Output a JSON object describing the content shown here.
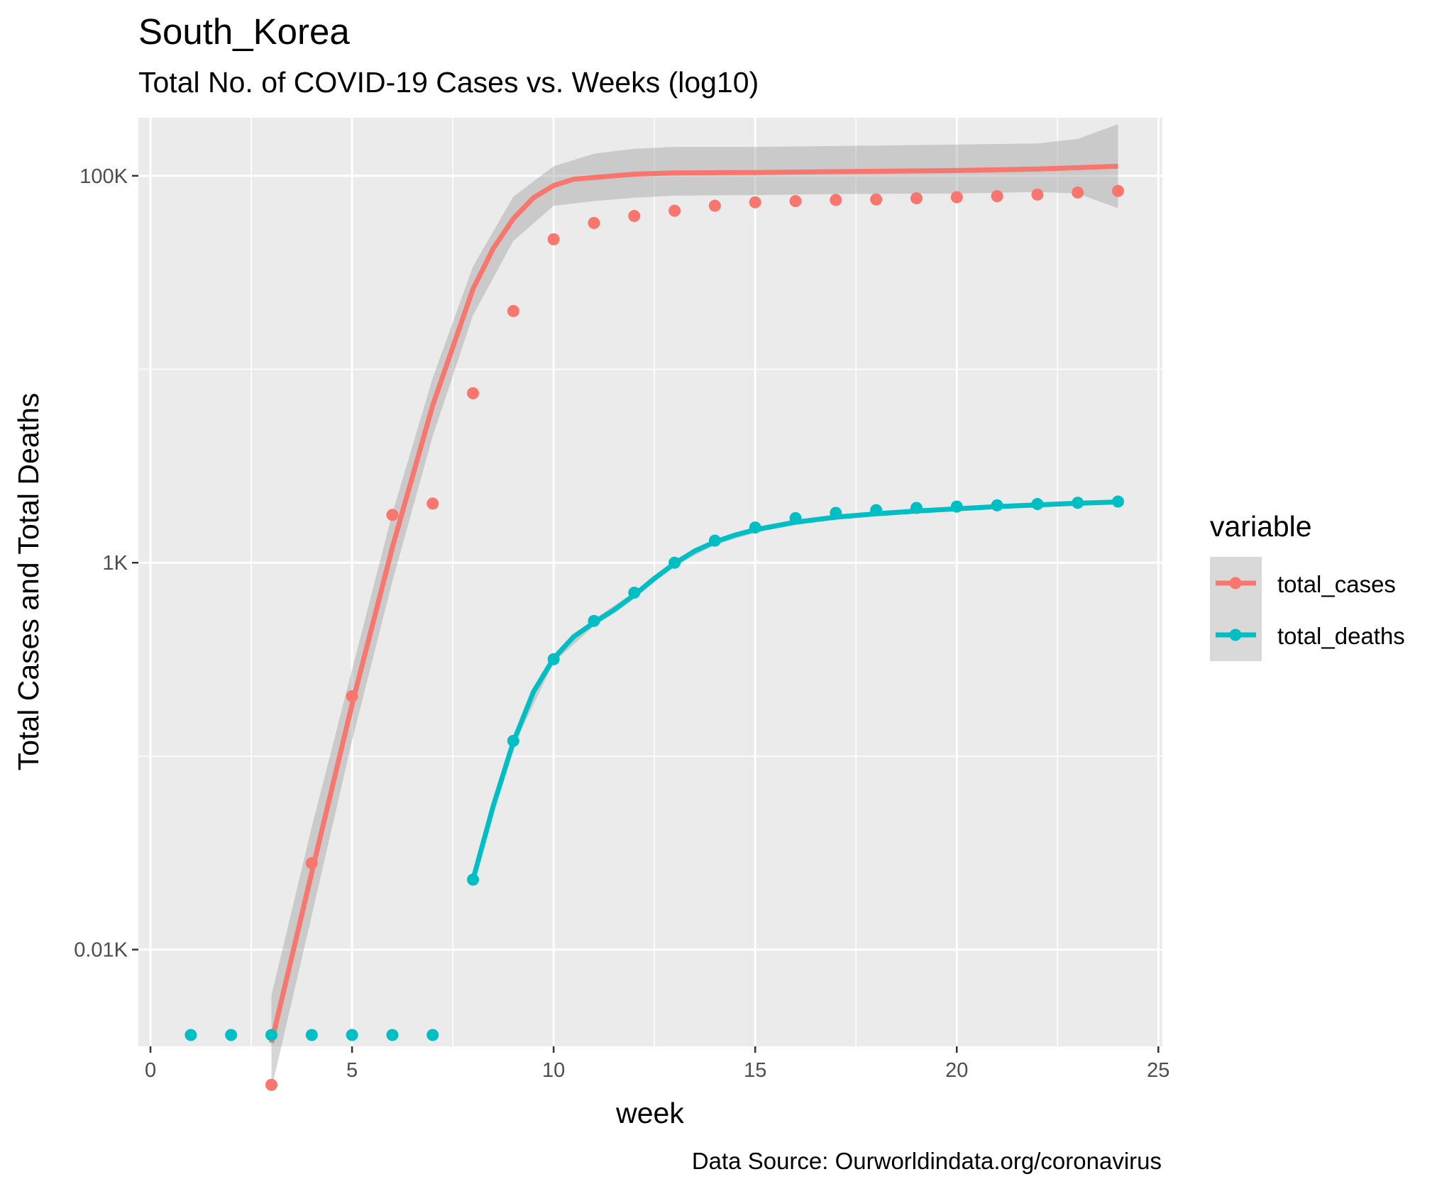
{
  "chart_data": {
    "type": "scatter",
    "title": "South_Korea",
    "subtitle": "Total No. of COVID-19 Cases vs. Weeks (log10)",
    "xlabel": "week",
    "ylabel": "Total Cases and Total Deaths",
    "caption": "Data Source: Ourworldindata.org/coronavirus",
    "x_scale": "linear",
    "y_scale": "log10",
    "xlim": [
      -0.3,
      25.1
    ],
    "ylim_log10": [
      0.5,
      5.3
    ],
    "x_ticks": [
      0,
      5,
      10,
      15,
      20,
      25
    ],
    "y_ticks": [
      {
        "value": 10,
        "label": "0.01K"
      },
      {
        "value": 1000,
        "label": "1K"
      },
      {
        "value": 100000,
        "label": "100K"
      }
    ],
    "grid": true,
    "smoothing": "loess with confidence band",
    "legend": {
      "title": "variable",
      "position": "right"
    },
    "series": [
      {
        "name": "total_cases",
        "color": "#F8766D",
        "points": [
          [
            3,
            2
          ],
          [
            4,
            28
          ],
          [
            5,
            204
          ],
          [
            6,
            1766
          ],
          [
            7,
            2022
          ],
          [
            8,
            7513
          ],
          [
            9,
            20000
          ],
          [
            10,
            47000
          ],
          [
            11,
            57000
          ],
          [
            12,
            62000
          ],
          [
            13,
            66000
          ],
          [
            14,
            70000
          ],
          [
            15,
            73000
          ],
          [
            16,
            74000
          ],
          [
            17,
            75000
          ],
          [
            18,
            75500
          ],
          [
            19,
            76500
          ],
          [
            20,
            77500
          ],
          [
            21,
            78500
          ],
          [
            22,
            80000
          ],
          [
            23,
            82000
          ],
          [
            24,
            83500
          ]
        ],
        "zero_points": [],
        "smooth": [
          [
            3,
            3.3
          ],
          [
            4,
            25
          ],
          [
            5,
            185
          ],
          [
            6,
            1200
          ],
          [
            7,
            6500
          ],
          [
            8,
            26000
          ],
          [
            8.5,
            42000
          ],
          [
            9,
            60000
          ],
          [
            9.5,
            77000
          ],
          [
            10,
            89000
          ],
          [
            10.5,
            96000
          ],
          [
            11,
            98000
          ],
          [
            12,
            102000
          ],
          [
            13,
            103500
          ],
          [
            15,
            104000
          ],
          [
            17,
            105000
          ],
          [
            20,
            106500
          ],
          [
            22,
            108500
          ],
          [
            24,
            112000
          ]
        ],
        "band": [
          [
            3,
            1.9,
            5.8
          ],
          [
            4,
            15,
            43
          ],
          [
            5,
            120,
            280
          ],
          [
            6,
            800,
            1800
          ],
          [
            7,
            4500,
            9000
          ],
          [
            8,
            19000,
            34000
          ],
          [
            9,
            46000,
            78000
          ],
          [
            10,
            70000,
            112000
          ],
          [
            11,
            74000,
            130000
          ],
          [
            12,
            77000,
            138000
          ],
          [
            13,
            79000,
            141000
          ],
          [
            15,
            79500,
            141000
          ],
          [
            17,
            80500,
            142500
          ],
          [
            20,
            81000,
            145000
          ],
          [
            22,
            82500,
            147000
          ],
          [
            23,
            81000,
            155000
          ],
          [
            24,
            68000,
            185000
          ]
        ]
      },
      {
        "name": "total_deaths",
        "color": "#00BFC4",
        "points": [
          [
            8,
            23
          ],
          [
            9,
            120
          ],
          [
            10,
            317
          ],
          [
            11,
            500
          ],
          [
            12,
            700
          ],
          [
            13,
            1000
          ],
          [
            14,
            1300
          ],
          [
            15,
            1520
          ],
          [
            16,
            1700
          ],
          [
            17,
            1810
          ],
          [
            18,
            1870
          ],
          [
            19,
            1920
          ],
          [
            20,
            1950
          ],
          [
            21,
            1980
          ],
          [
            22,
            2010
          ],
          [
            23,
            2040
          ],
          [
            24,
            2070
          ]
        ],
        "zero_points": [
          1,
          2,
          3,
          4,
          5,
          6,
          7
        ],
        "smooth": [
          [
            8,
            23
          ],
          [
            8.5,
            55
          ],
          [
            9,
            118
          ],
          [
            9.5,
            215
          ],
          [
            10,
            320
          ],
          [
            10.5,
            415
          ],
          [
            11,
            490
          ],
          [
            11.5,
            570
          ],
          [
            12,
            680
          ],
          [
            12.5,
            830
          ],
          [
            13,
            990
          ],
          [
            13.5,
            1150
          ],
          [
            14,
            1280
          ],
          [
            14.5,
            1390
          ],
          [
            15,
            1480
          ],
          [
            16,
            1620
          ],
          [
            17,
            1720
          ],
          [
            18,
            1790
          ],
          [
            19,
            1850
          ],
          [
            20,
            1900
          ],
          [
            21,
            1950
          ],
          [
            22,
            1990
          ],
          [
            23,
            2030
          ],
          [
            24,
            2060
          ]
        ],
        "band": [
          [
            8,
            22,
            24
          ],
          [
            9,
            112,
            125
          ],
          [
            10,
            305,
            335
          ],
          [
            11,
            470,
            510
          ],
          [
            12,
            655,
            705
          ],
          [
            13,
            960,
            1020
          ],
          [
            14,
            1240,
            1320
          ],
          [
            15,
            1430,
            1530
          ],
          [
            16,
            1570,
            1670
          ],
          [
            17,
            1670,
            1770
          ],
          [
            18,
            1740,
            1840
          ],
          [
            19,
            1800,
            1900
          ],
          [
            20,
            1850,
            1950
          ],
          [
            21,
            1900,
            2000
          ],
          [
            22,
            1940,
            2040
          ],
          [
            23,
            1980,
            2085
          ],
          [
            24,
            2000,
            2120
          ]
        ]
      }
    ]
  }
}
